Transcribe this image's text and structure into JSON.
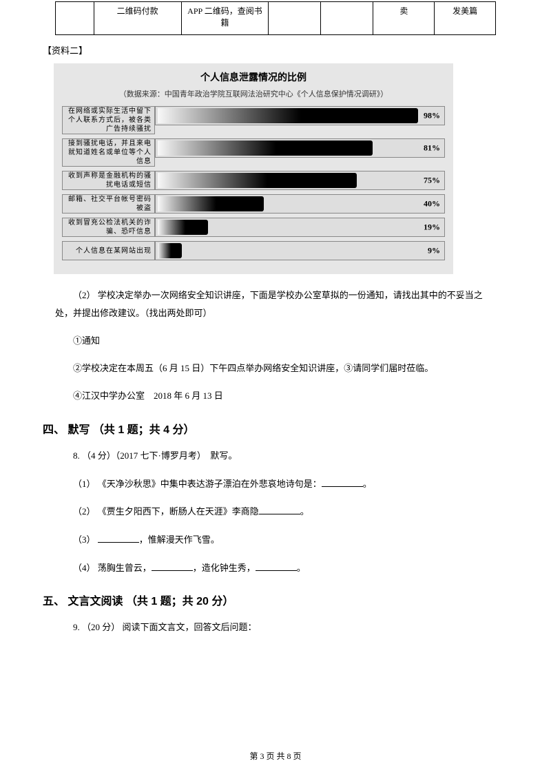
{
  "top_table": {
    "row": {
      "c1": "二维码付款",
      "c2": "APP 二维码，查阅书籍",
      "c5": "卖",
      "c6": "发美篇"
    }
  },
  "material_label": "【资料二】",
  "chart": {
    "title": "个人信息泄露情况的比例",
    "subtitle": "（数据来源：中国青年政治学院互联网法治研究中心《个人信息保护情况调研》）",
    "bars": [
      {
        "label": "在网络或实际生活中留下个人联系方式后，被各类广告持续骚扰",
        "value": 98,
        "pct_label": "98%"
      },
      {
        "label": "接到骚扰电话，并且来电就知道姓名或单位等个人信息",
        "value": 81,
        "pct_label": "81%"
      },
      {
        "label": "收到声称是金融机构的骚扰电话或短信",
        "value": 75,
        "pct_label": "75%"
      },
      {
        "label": "邮箱、社交平台帐号密码被盗",
        "value": 40,
        "pct_label": "40%"
      },
      {
        "label": "收到冒充公检法机关的诈骗、恐吓信息",
        "value": 19,
        "pct_label": "19%"
      },
      {
        "label": "个人信息在某网站出现",
        "value": 9,
        "pct_label": "9%"
      }
    ],
    "bar_track_bg": "#dedede",
    "bar_gradient_from": "#f8f8f8",
    "bar_gradient_to": "#000000"
  },
  "q2_intro": "（2） 学校决定举办一次网络安全知识讲座，下面是学校办公室草拟的一份通知，请找出其中的不妥当之处，并提出修改建议。（找出两处即可）",
  "notice": {
    "l1": "①通知",
    "l2": "②学校决定在本周五（6 月 15 日）下午四点举办网络安全知识讲座，③请同学们届时莅临。",
    "l3": "④江汉中学办公室　2018 年 6 月 13 日"
  },
  "section4": "四、 默写 （共 1 题；共 4 分）",
  "q8_head": "8. （4 分）（2017 七下·博罗月考）　默写。",
  "q8_1": "（1） 《天净沙秋思》中集中表达游子漂泊在外悲哀地诗句是：",
  "q8_1_tail": "。",
  "q8_2a": "（2） 《贾生夕阳西下，断肠人在天涯》李商隐",
  "q8_2_tail": "。",
  "q8_3a": "（3） ",
  "q8_3b": "，惟解漫天作飞雪。",
  "q8_4a": "（4） 荡胸生曾云，",
  "q8_4b": "，造化钟生秀，",
  "q8_4_tail": "。",
  "section5": "五、 文言文阅读 （共 1 题；共 20 分）",
  "q9": "9. （20 分） 阅读下面文言文，回答文后问题：",
  "footer": "第 3 页 共 8 页"
}
